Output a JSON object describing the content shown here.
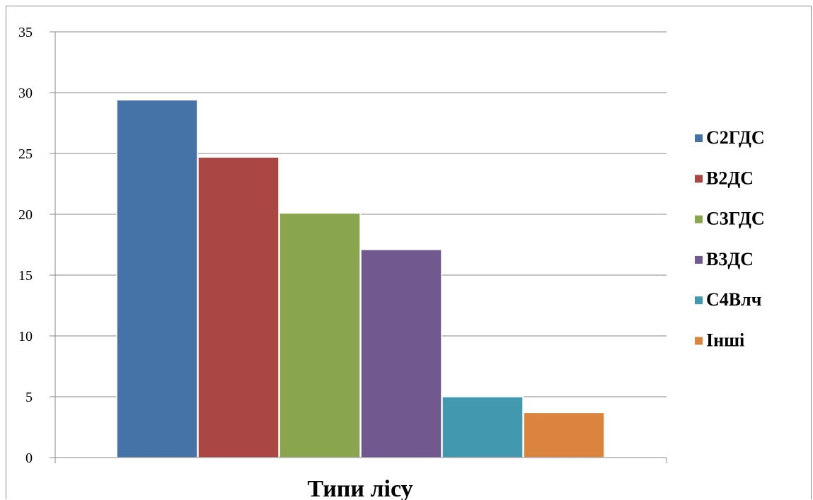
{
  "chart_data": {
    "type": "bar",
    "title": "",
    "xlabel": "Типи лісу",
    "ylabel": "",
    "ylim": [
      0,
      35
    ],
    "yticks": [
      0,
      5,
      10,
      15,
      20,
      25,
      30,
      35
    ],
    "grid": true,
    "legend_position": "right",
    "series": [
      {
        "name": "С2ГДС",
        "value": 29.4,
        "color": "#4573a7"
      },
      {
        "name": "В2ДС",
        "value": 24.7,
        "color": "#aa4644"
      },
      {
        "name": "С3ГДС",
        "value": 20.1,
        "color": "#89a54e"
      },
      {
        "name": "В3ДС",
        "value": 17.1,
        "color": "#71588f"
      },
      {
        "name": "С4Влч",
        "value": 5.0,
        "color": "#4298af"
      },
      {
        "name": "Інші",
        "value": 3.7,
        "color": "#db843d"
      }
    ]
  }
}
